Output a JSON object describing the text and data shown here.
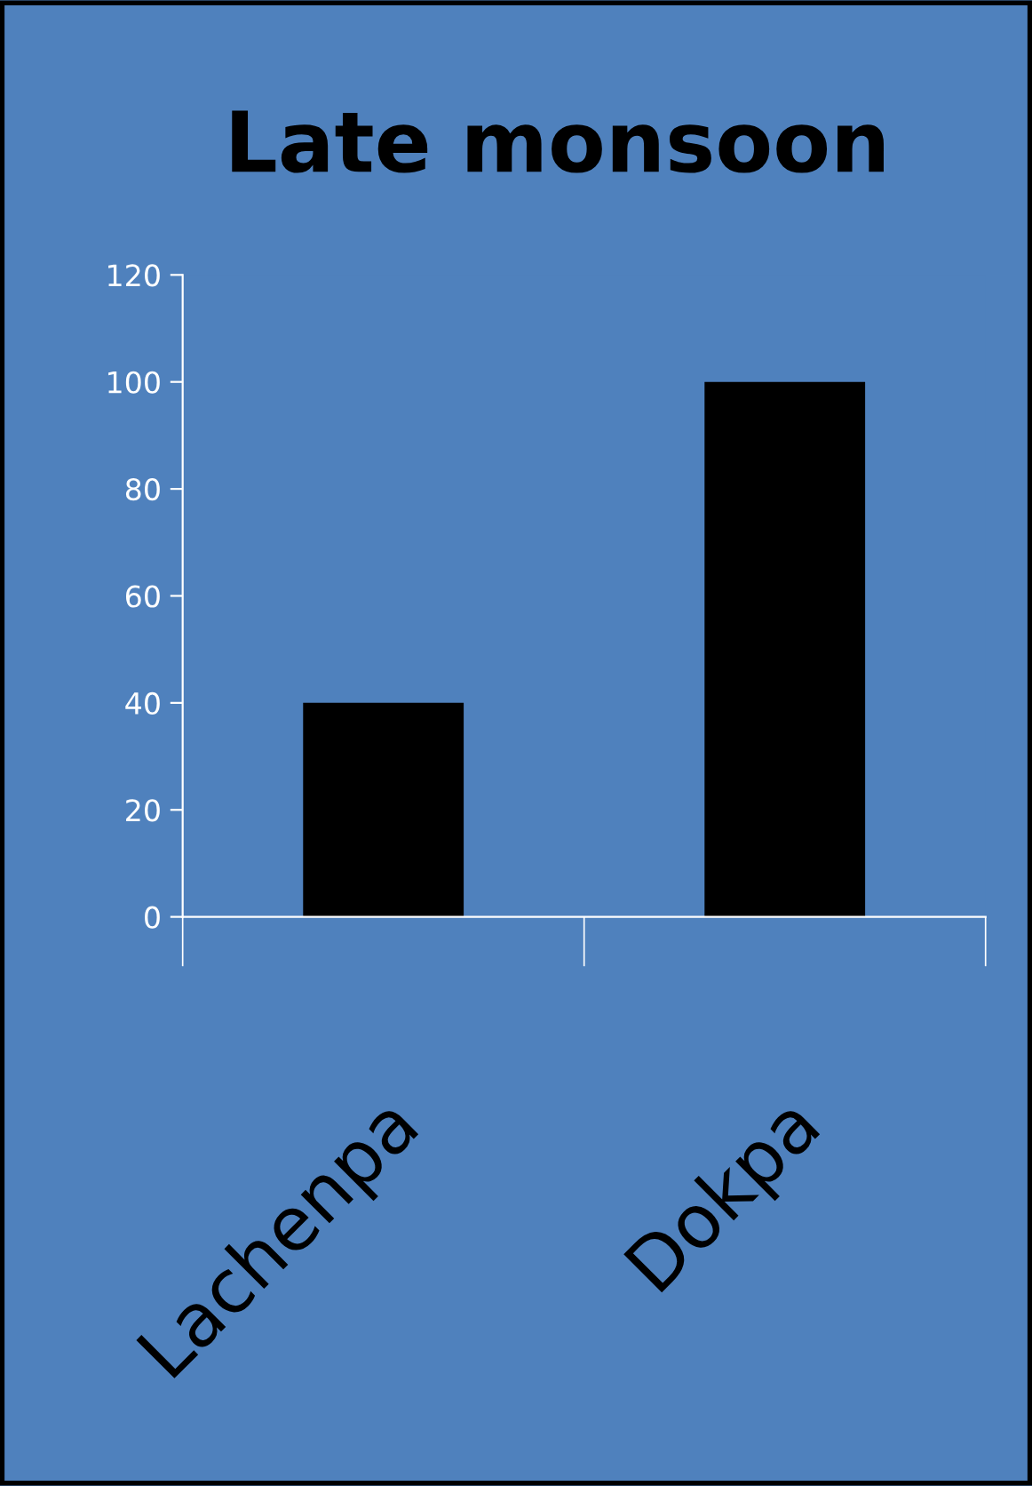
{
  "chart_data": {
    "type": "bar",
    "title": "Late monsoon",
    "categories": [
      "Lachenpa",
      "Dokpa"
    ],
    "values": [
      40,
      100
    ],
    "color": "#000000",
    "ylim": [
      0,
      120
    ],
    "yticks": [
      0,
      20,
      40,
      60,
      80,
      100,
      120
    ],
    "grid": false,
    "legend": false
  }
}
